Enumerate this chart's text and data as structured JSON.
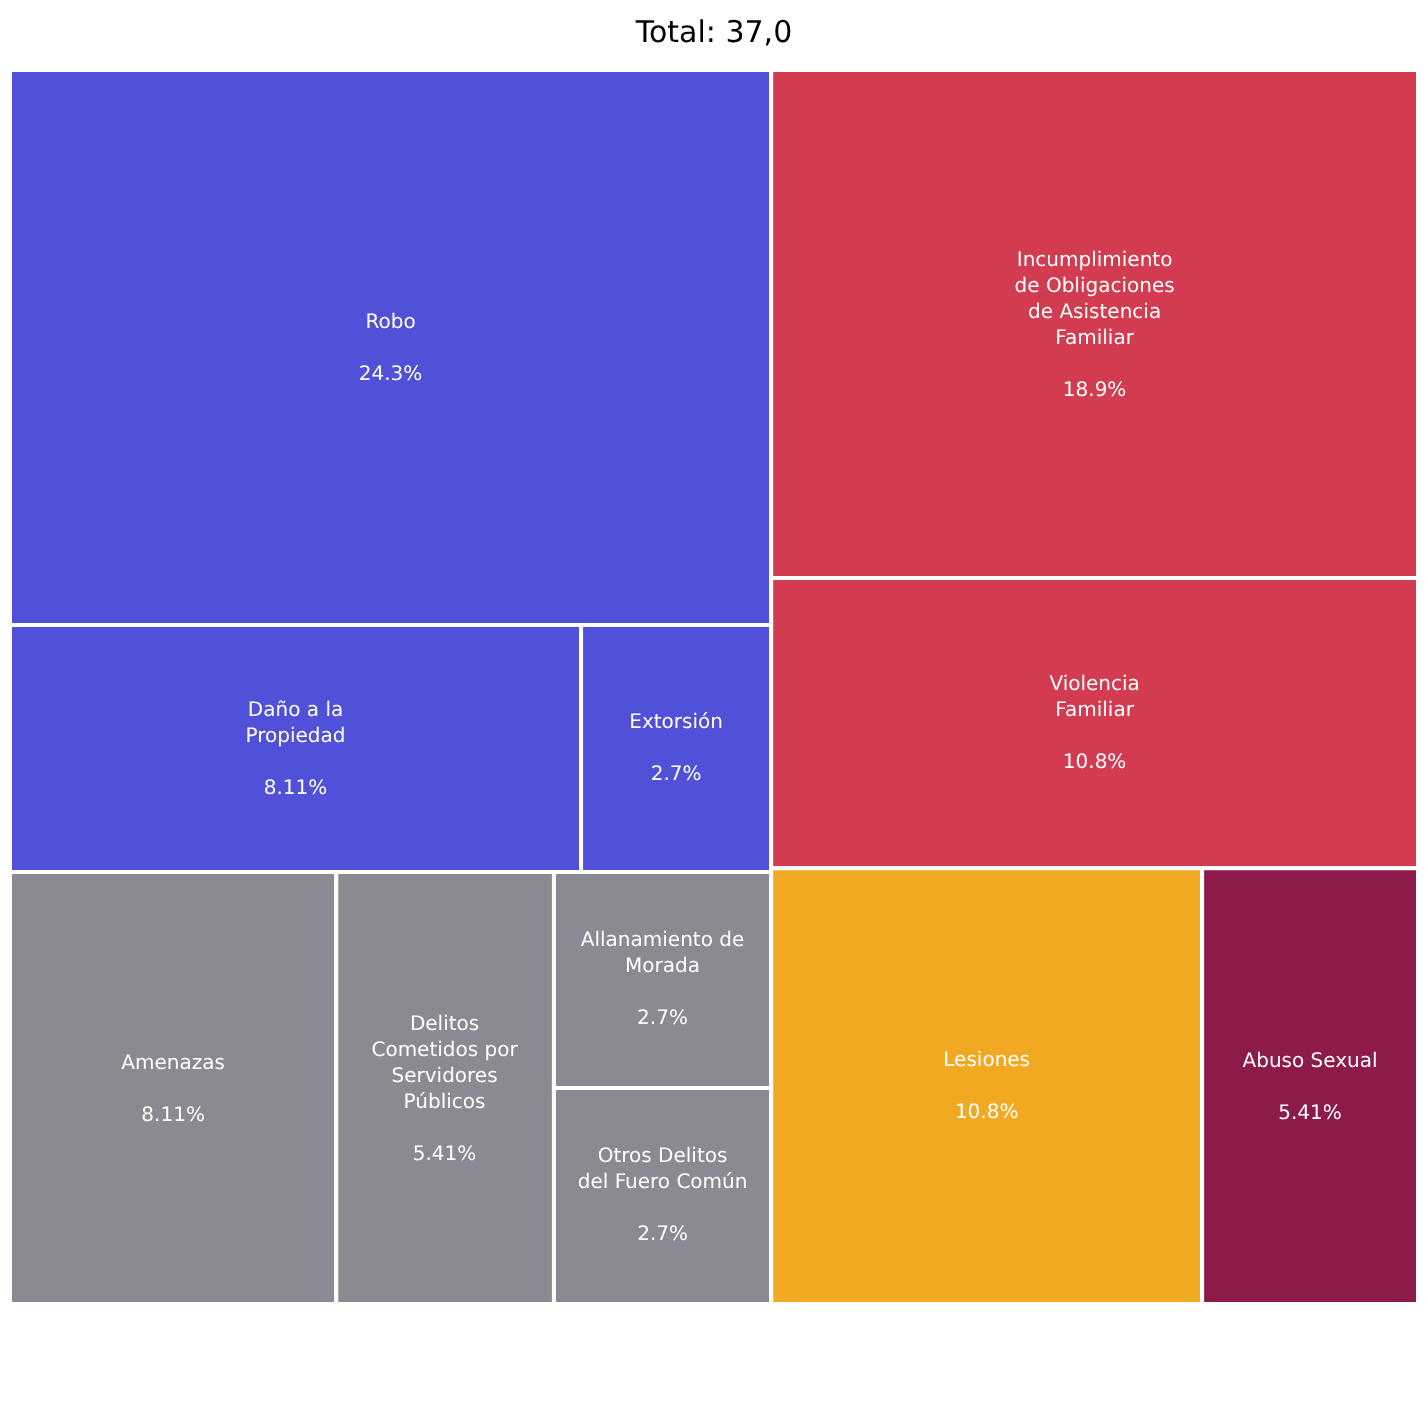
{
  "chart_data": {
    "type": "other",
    "title": "Total: 37,0",
    "categories": [
      "Robo",
      "Daño a la Propiedad",
      "Extorsión",
      "Amenazas",
      "Delitos Cometidos por Servidores Públicos",
      "Allanamiento de Morada",
      "Otros Delitos del Fuero Común",
      "Incumplimiento de Obligaciones de Asistencia Familiar",
      "Violencia Familiar",
      "Lesiones",
      "Abuso Sexual"
    ],
    "values": [
      24.3,
      8.11,
      2.7,
      8.11,
      5.41,
      2.7,
      2.7,
      18.9,
      10.8,
      10.8,
      5.41
    ],
    "value_labels": [
      "24.3%",
      "8.11%",
      "2.7%",
      "8.11%",
      "5.41%",
      "2.7%",
      "2.7%",
      "18.9%",
      "10.8%",
      "10.8%",
      "5.41%"
    ],
    "colors": [
      "#5050d8",
      "#5050d8",
      "#5050d8",
      "#8a8a92",
      "#8a8a92",
      "#8a8a92",
      "#8a8a92",
      "#d33c50",
      "#d33c50",
      "#f2a922",
      "#8e1a4a"
    ]
  }
}
